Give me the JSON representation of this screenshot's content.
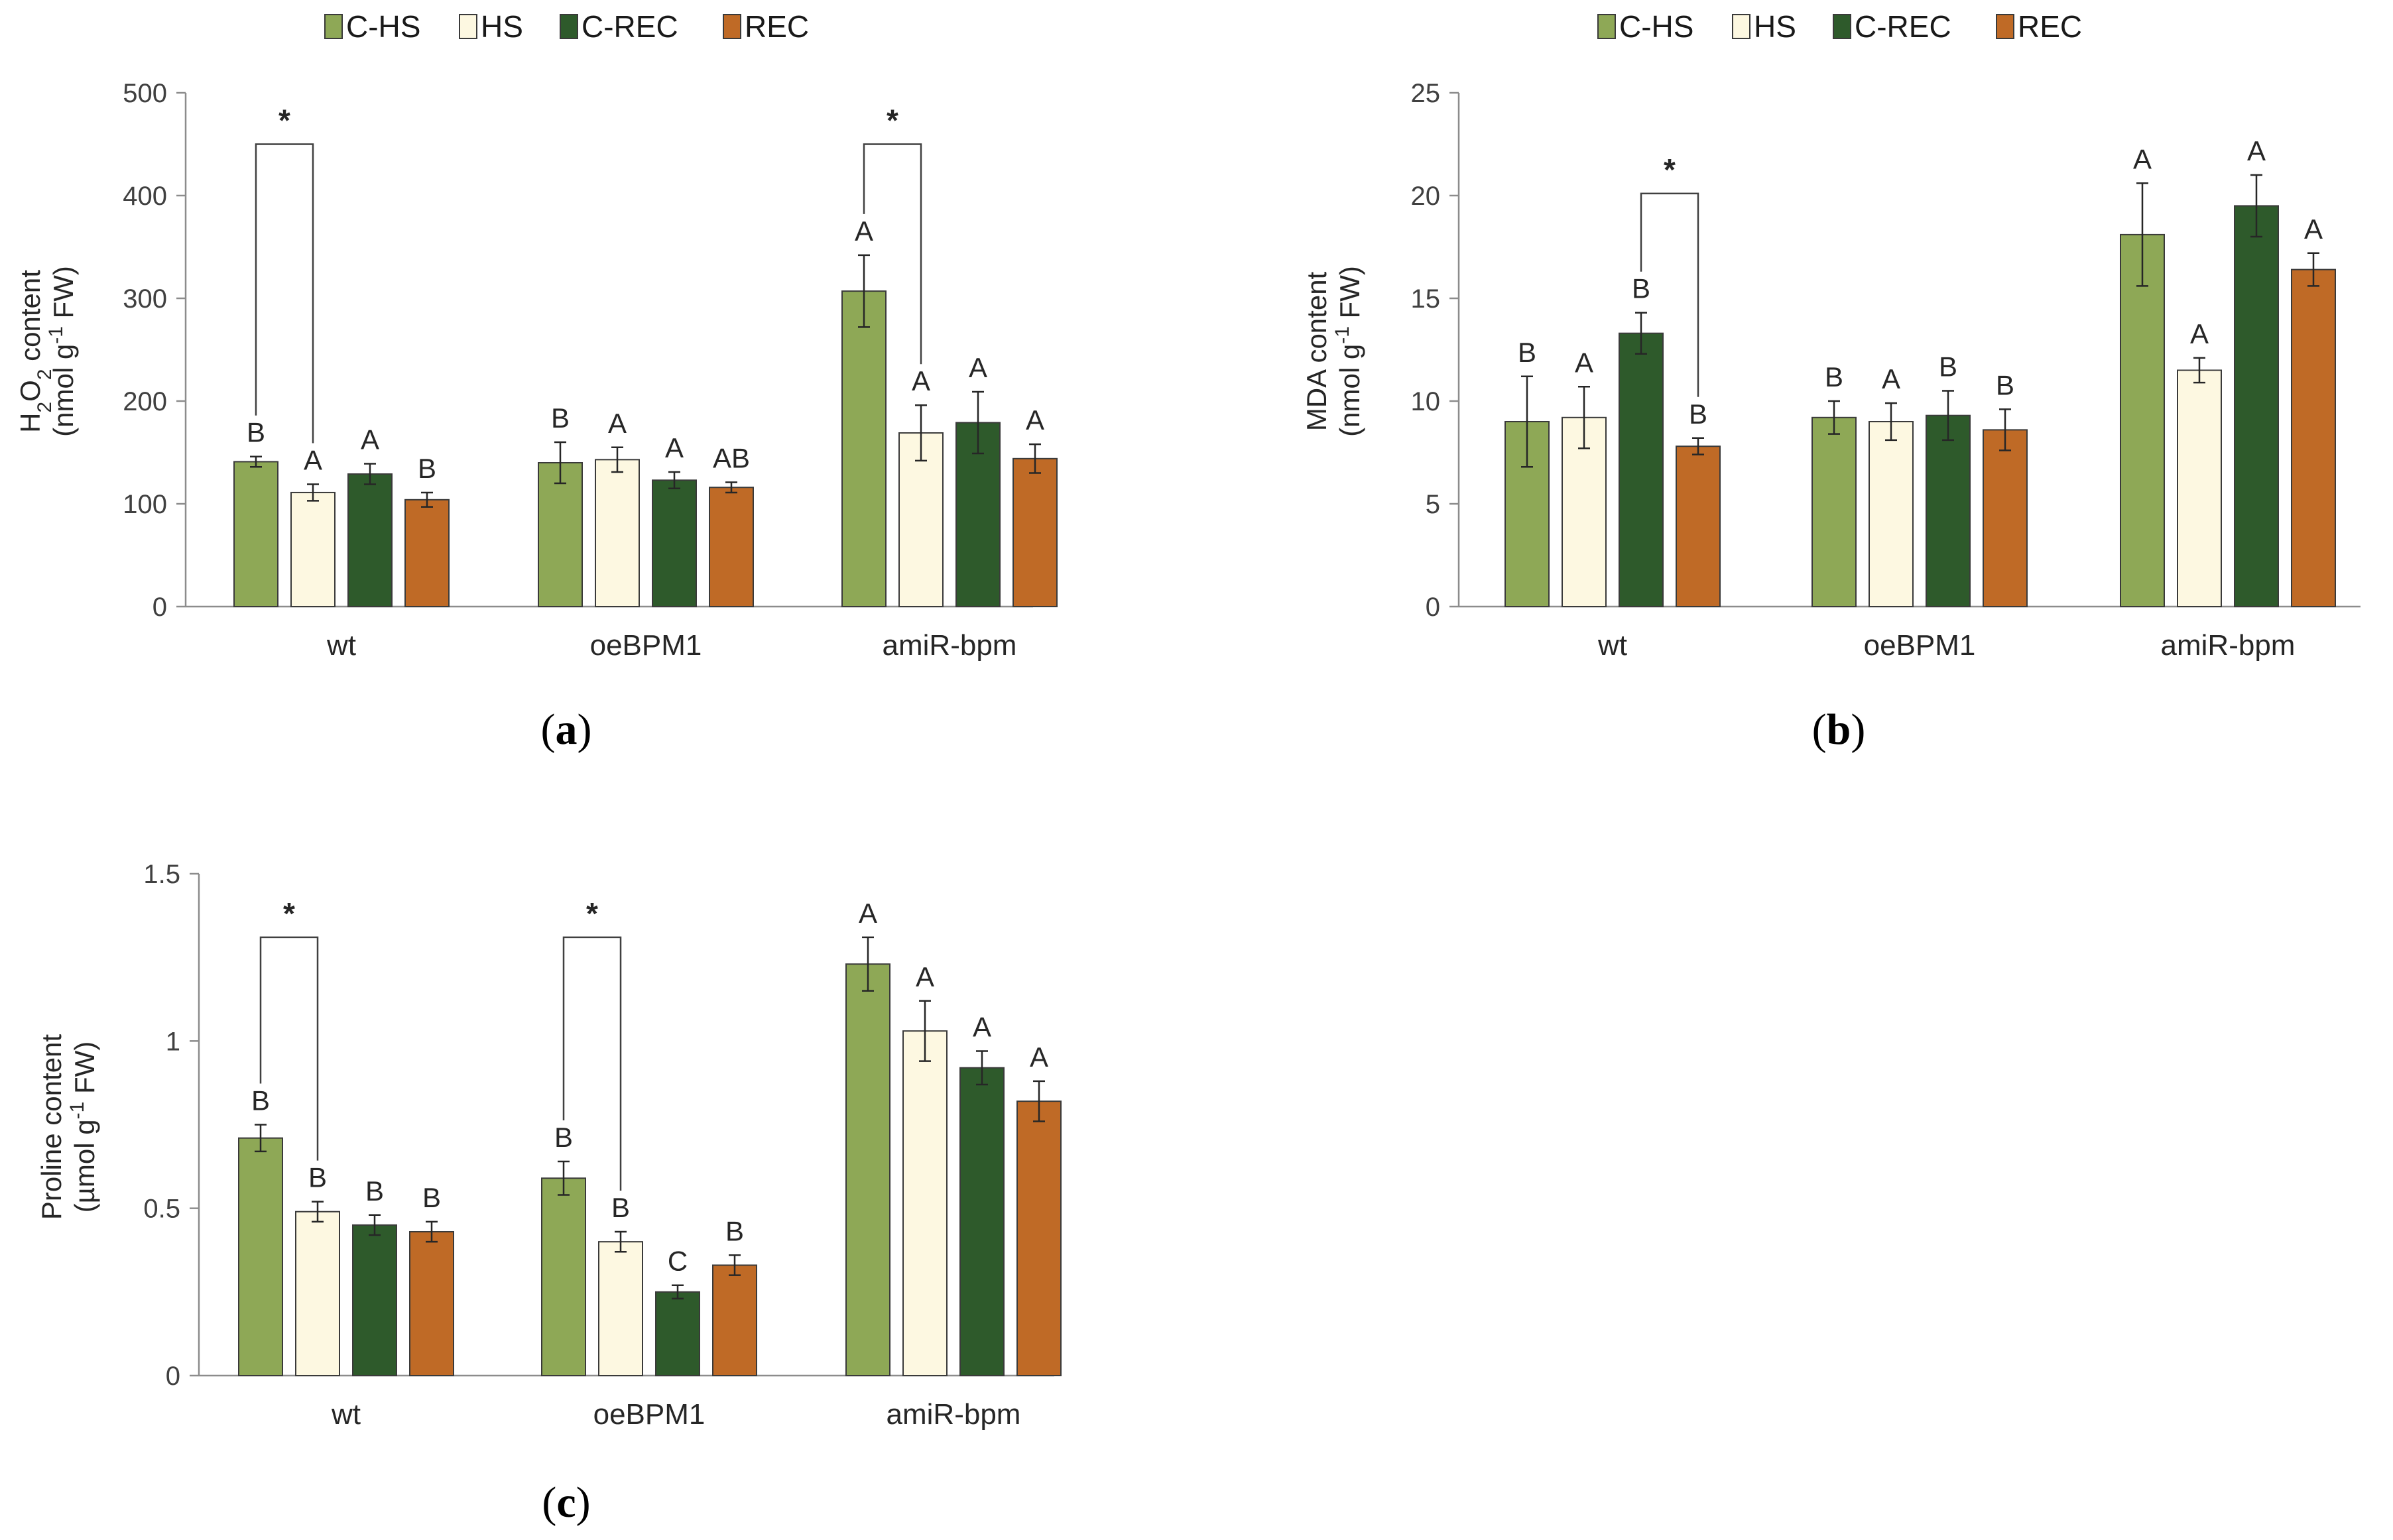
{
  "chart_data": [
    {
      "panel": "(a)",
      "type": "bar",
      "categories": [
        "wt",
        "oeBPM1",
        "amiR-bpm"
      ],
      "ylabel_line1_pre": "H",
      "ylabel_line1_sub": "2",
      "ylabel_line1_mid": "O",
      "ylabel_line1_sub2": "2",
      "ylabel_line1_post": " content",
      "ylabel_line2_pre": "(nmol g",
      "ylabel_line2_sup": "-1",
      "ylabel_line2_post": " FW)",
      "ylim": [
        0,
        500
      ],
      "yticks": [
        0,
        100,
        200,
        300,
        400,
        500
      ],
      "legend": "top",
      "series": [
        {
          "name": "C-HS",
          "values": [
            141,
            140,
            307
          ],
          "errors": [
            5,
            20,
            35
          ],
          "letters": [
            "B",
            "B",
            "A"
          ]
        },
        {
          "name": "HS",
          "values": [
            111,
            143,
            169
          ],
          "errors": [
            8,
            12,
            27
          ],
          "letters": [
            "A",
            "A",
            "A"
          ]
        },
        {
          "name": "C-REC",
          "values": [
            129,
            123,
            179
          ],
          "errors": [
            10,
            8,
            30
          ],
          "letters": [
            "A",
            "A",
            "A"
          ]
        },
        {
          "name": "REC",
          "values": [
            104,
            116,
            144
          ],
          "errors": [
            7,
            5,
            14
          ],
          "letters": [
            "B",
            "AB",
            "A"
          ]
        }
      ],
      "significance": [
        {
          "category": 0,
          "from_series": 0,
          "to_series": 1,
          "label": "*",
          "y": 450
        },
        {
          "category": 2,
          "from_series": 0,
          "to_series": 1,
          "label": "*",
          "y": 450
        }
      ]
    },
    {
      "panel": "(b)",
      "type": "bar",
      "categories": [
        "wt",
        "oeBPM1",
        "amiR-bpm"
      ],
      "ylabel_line1_pre": "MDA content",
      "ylabel_line2_pre": "(nmol g",
      "ylabel_line2_sup": "-1",
      "ylabel_line2_post": " FW)",
      "ylim": [
        0,
        25
      ],
      "yticks": [
        0,
        5,
        10,
        15,
        20,
        25
      ],
      "legend": "top",
      "series": [
        {
          "name": "C-HS",
          "values": [
            9.0,
            9.2,
            18.1
          ],
          "errors": [
            2.2,
            0.8,
            2.5
          ],
          "letters": [
            "B",
            "B",
            "A"
          ]
        },
        {
          "name": "HS",
          "values": [
            9.2,
            9.0,
            11.5
          ],
          "errors": [
            1.5,
            0.9,
            0.6
          ],
          "letters": [
            "A",
            "A",
            "A"
          ]
        },
        {
          "name": "C-REC",
          "values": [
            13.3,
            9.3,
            19.5
          ],
          "errors": [
            1.0,
            1.2,
            1.5
          ],
          "letters": [
            "B",
            "B",
            "A"
          ]
        },
        {
          "name": "REC",
          "values": [
            7.8,
            8.6,
            16.4
          ],
          "errors": [
            0.4,
            1.0,
            0.8
          ],
          "letters": [
            "B",
            "B",
            "A"
          ]
        }
      ],
      "significance": [
        {
          "category": 0,
          "from_series": 2,
          "to_series": 3,
          "label": "*",
          "y": 20.1
        }
      ]
    },
    {
      "panel": "(c)",
      "type": "bar",
      "categories": [
        "wt",
        "oeBPM1",
        "amiR-bpm"
      ],
      "ylabel_line1_pre": "Proline content",
      "ylabel_line2_pre": "(µmol g",
      "ylabel_line2_sup": "-1",
      "ylabel_line2_post": " FW)",
      "ylim": [
        0,
        1.5
      ],
      "yticks": [
        0,
        0.5,
        1,
        1.5
      ],
      "ytick_labels": [
        "0",
        "0.5",
        "1",
        "1.5"
      ],
      "series": [
        {
          "name": "C-HS",
          "values": [
            0.71,
            0.59,
            1.23
          ],
          "errors": [
            0.04,
            0.05,
            0.08
          ],
          "letters": [
            "B",
            "B",
            "A"
          ]
        },
        {
          "name": "HS",
          "values": [
            0.49,
            0.4,
            1.03
          ],
          "errors": [
            0.03,
            0.03,
            0.09
          ],
          "letters": [
            "B",
            "B",
            "A"
          ]
        },
        {
          "name": "C-REC",
          "values": [
            0.45,
            0.25,
            0.92
          ],
          "errors": [
            0.03,
            0.02,
            0.05
          ],
          "letters": [
            "B",
            "C",
            "A"
          ]
        },
        {
          "name": "REC",
          "values": [
            0.43,
            0.33,
            0.82
          ],
          "errors": [
            0.03,
            0.03,
            0.06
          ],
          "letters": [
            "B",
            "B",
            "A"
          ]
        }
      ],
      "significance": [
        {
          "category": 0,
          "from_series": 0,
          "to_series": 1,
          "label": "*",
          "y": 1.31
        },
        {
          "category": 1,
          "from_series": 0,
          "to_series": 1,
          "label": "*",
          "y": 1.31
        }
      ]
    }
  ],
  "legend_items": [
    "C-HS",
    "HS",
    "C-REC",
    "REC"
  ],
  "colors": {
    "C-HS": "#8ea856",
    "HS": "#fdf8e1",
    "C-REC": "#2e5a2b",
    "REC": "#bf6a26",
    "axis": "#8c8c8c",
    "bar_edge": "#3a3a3a"
  }
}
